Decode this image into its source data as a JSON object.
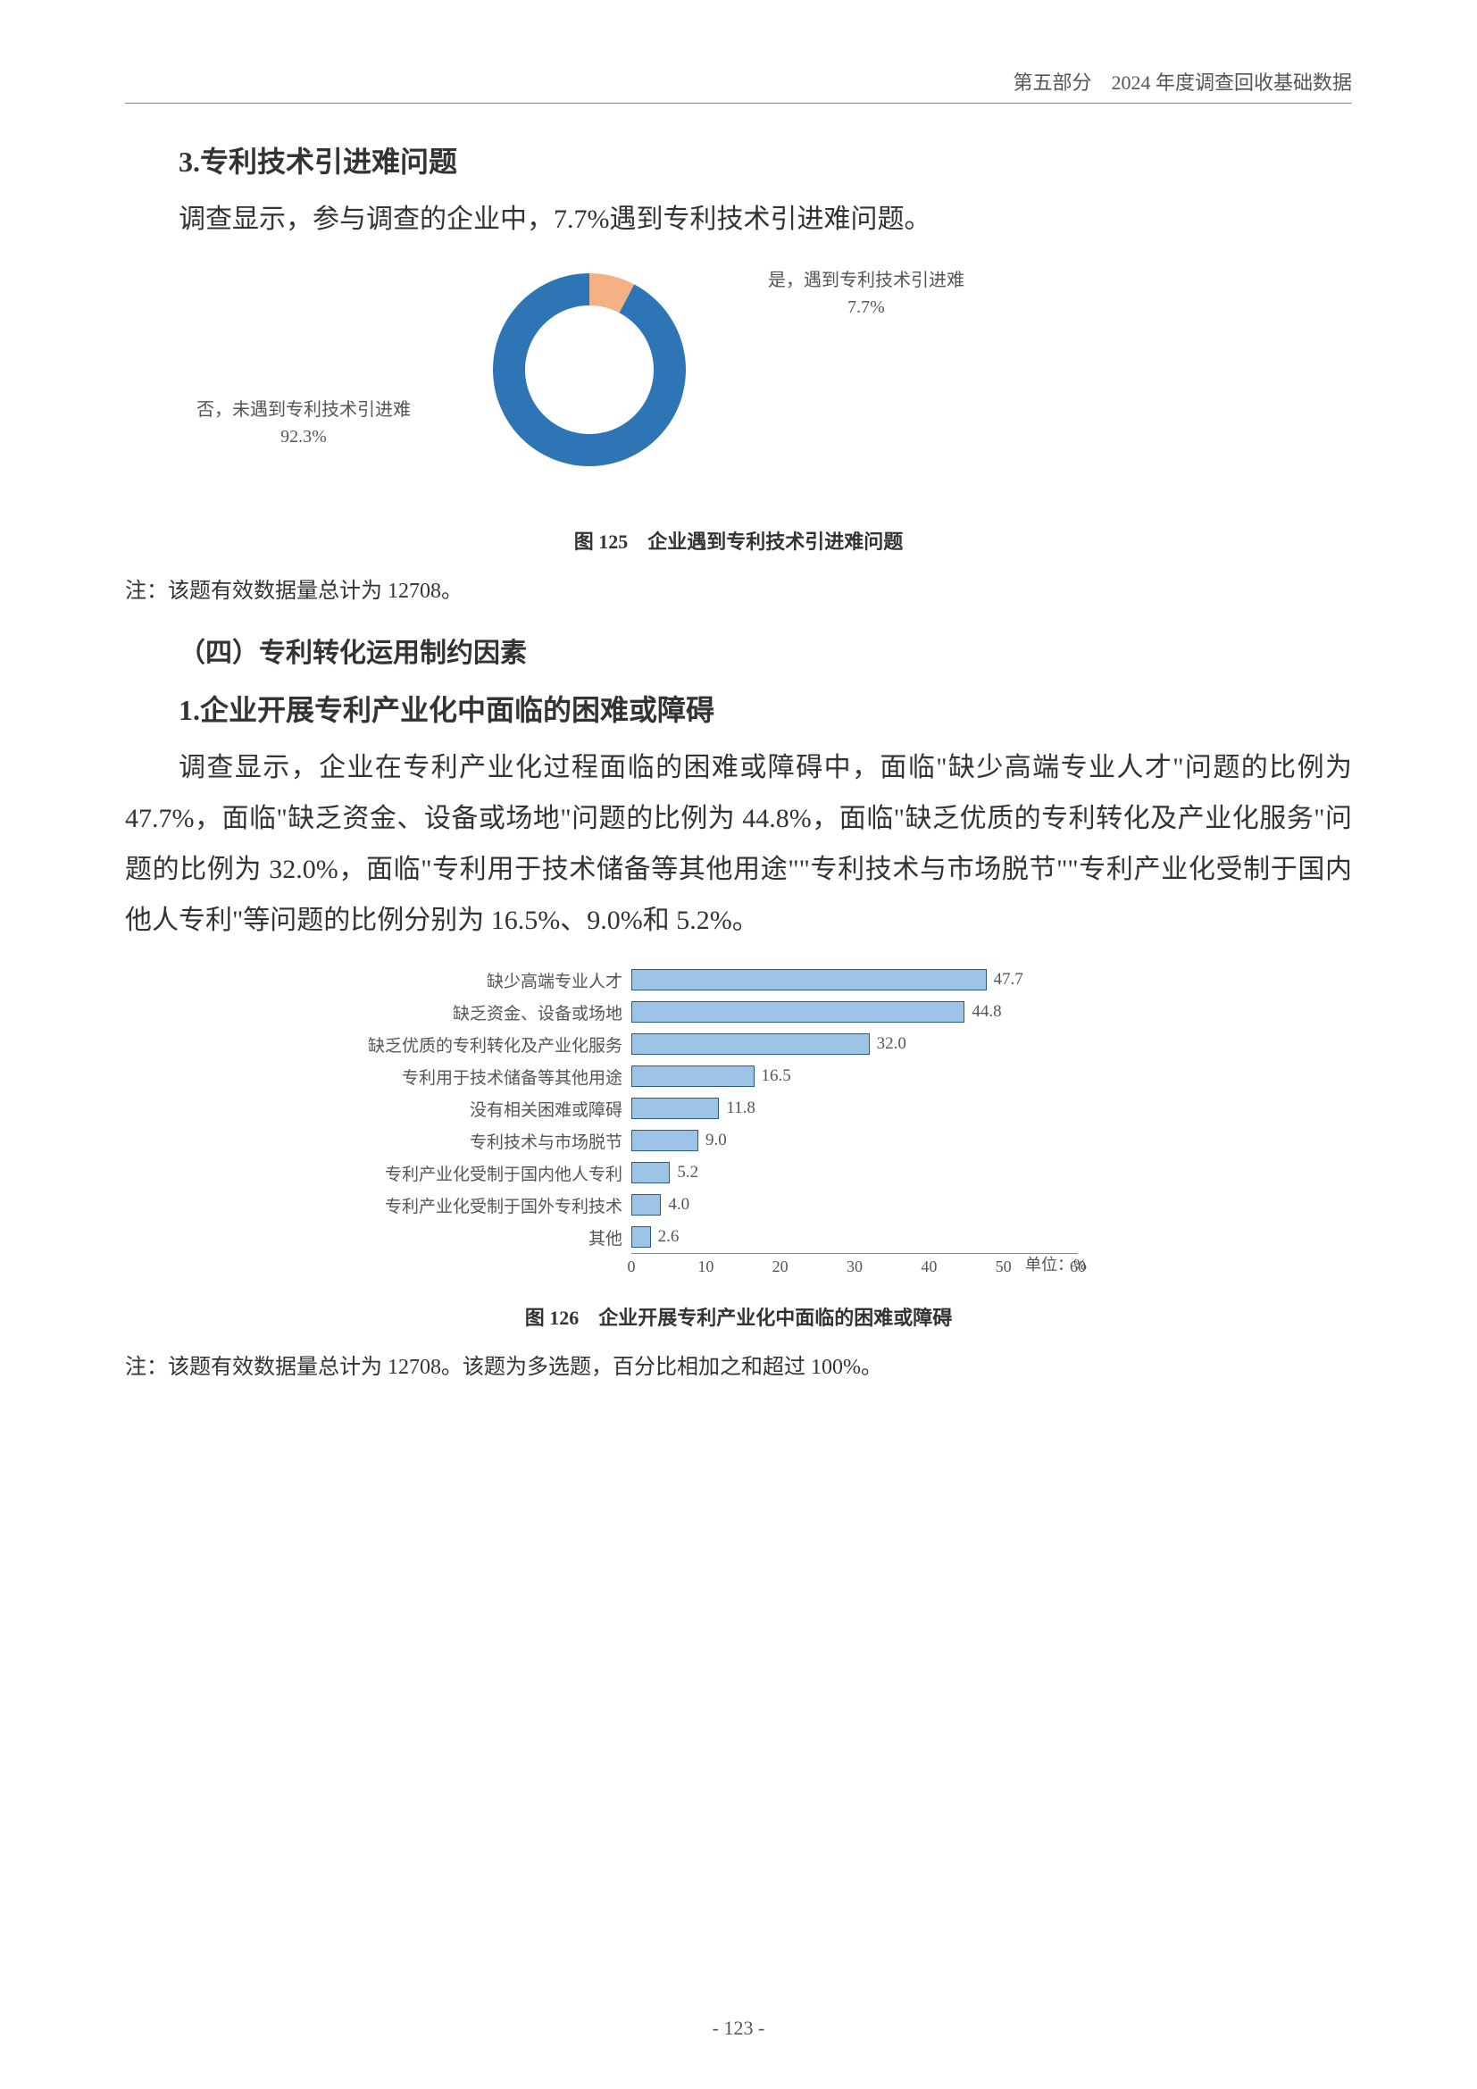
{
  "header": {
    "part": "第五部分",
    "subtitle": "2024 年度调查回收基础数据"
  },
  "section3": {
    "number": "3.",
    "title": "专利技术引进难问题",
    "intro": "调查显示，参与调查的企业中，7.7%遇到专利技术引进难问题。"
  },
  "donut_chart": {
    "type": "donut",
    "series": [
      {
        "label_line1": "是，遇到专利技术引进难",
        "label_line2": "7.7%",
        "value": 7.7,
        "color": "#f4b183"
      },
      {
        "label_line1": "否，未遇到专利技术引进难",
        "label_line2": "92.3%",
        "value": 92.3,
        "color": "#2e75b6"
      }
    ],
    "inner_radius": 72,
    "outer_radius": 108,
    "background_color": "#ffffff",
    "label_fontsize": 20,
    "label_color": "#555555"
  },
  "figure125": {
    "number": "图 125",
    "title": "企业遇到专利技术引进难问题"
  },
  "note1": "注：该题有效数据量总计为 12708。",
  "subsection4": {
    "label": "（四）专利转化运用制约因素"
  },
  "section1b": {
    "number": "1.",
    "title": "企业开展专利产业化中面临的困难或障碍"
  },
  "body_paragraph": "调查显示，企业在专利产业化过程面临的困难或障碍中，面临\"缺少高端专业人才\"问题的比例为 47.7%，面临\"缺乏资金、设备或场地\"问题的比例为 44.8%，面临\"缺乏优质的专利转化及产业化服务\"问题的比例为 32.0%，面临\"专利用于技术储备等其他用途\"\"专利技术与市场脱节\"\"专利产业化受制于国内他人专利\"等问题的比例分别为 16.5%、9.0%和 5.2%。",
  "bar_chart": {
    "type": "bar",
    "xlim": [
      0,
      60
    ],
    "xtick_step": 10,
    "xticks": [
      0,
      10,
      20,
      30,
      40,
      50,
      60
    ],
    "unit_label": "单位：%",
    "bar_color": "#9dc3e6",
    "bar_border_color": "#2b5a8c",
    "label_fontsize": 19,
    "label_color": "#555555",
    "categories": [
      {
        "label": "缺少高端专业人才",
        "value": 47.7
      },
      {
        "label": "缺乏资金、设备或场地",
        "value": 44.8
      },
      {
        "label": "缺乏优质的专利转化及产业化服务",
        "value": 32.0
      },
      {
        "label": "专利用于技术储备等其他用途",
        "value": 16.5
      },
      {
        "label": "没有相关困难或障碍",
        "value": 11.8
      },
      {
        "label": "专利技术与市场脱节",
        "value": 9.0
      },
      {
        "label": "专利产业化受制于国内他人专利",
        "value": 5.2
      },
      {
        "label": "专利产业化受制于国外专利技术",
        "value": 4.0
      },
      {
        "label": "其他",
        "value": 2.6
      }
    ]
  },
  "figure126": {
    "number": "图 126",
    "title": "企业开展专利产业化中面临的困难或障碍"
  },
  "note2": "注：该题有效数据量总计为 12708。该题为多选题，百分比相加之和超过 100%。",
  "page_number": "- 123 -"
}
